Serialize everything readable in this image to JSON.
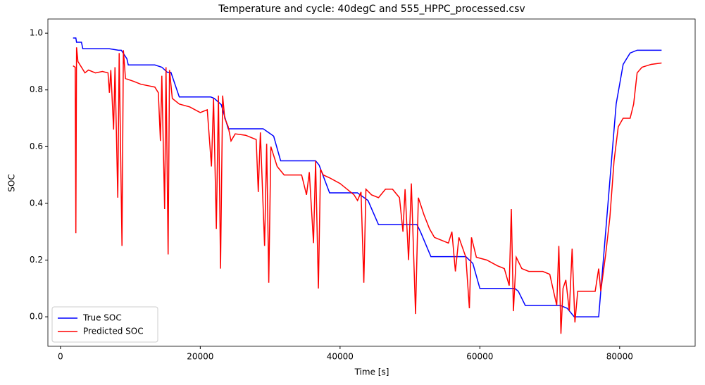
{
  "chart_data": {
    "type": "line",
    "title": "Temperature and cycle: 40degC and 555_HPPC_processed.csv",
    "x_label": "Time [s]",
    "y_label": "SOC",
    "xlim": [
      -1800,
      90800
    ],
    "ylim": [
      -0.104,
      1.05
    ],
    "xticks": [
      0,
      20000,
      40000,
      60000,
      80000
    ],
    "yticks": [
      {
        "value": 0,
        "label": "0.0"
      },
      0.2,
      0.4,
      0.6,
      0.8,
      {
        "value": 1,
        "label": "1.0"
      }
    ],
    "legend": "lower left",
    "series": [
      {
        "name": "True SOC",
        "color": "#0000ff",
        "x": [
          1800,
          2200,
          2300,
          3000,
          3200,
          7000,
          8300,
          8700,
          9500,
          9700,
          13500,
          14500,
          15300,
          15800,
          17000,
          21500,
          22000,
          23000,
          24000,
          29000,
          30500,
          31500,
          36500,
          37000,
          38500,
          42500,
          44000,
          45500,
          51000,
          51500,
          53000,
          58000,
          59000,
          60000,
          65000,
          65500,
          66500,
          71500,
          72500,
          73500,
          77000,
          78500,
          79500,
          80500,
          81500,
          82500,
          86000
        ],
        "values": [
          0.983,
          0.983,
          0.968,
          0.968,
          0.945,
          0.945,
          0.94,
          0.94,
          0.91,
          0.888,
          0.888,
          0.88,
          0.862,
          0.862,
          0.775,
          0.775,
          0.77,
          0.748,
          0.663,
          0.663,
          0.637,
          0.55,
          0.55,
          0.535,
          0.437,
          0.437,
          0.41,
          0.325,
          0.325,
          0.3,
          0.212,
          0.212,
          0.188,
          0.1,
          0.1,
          0.09,
          0.04,
          0.04,
          0.03,
          0.0,
          0.0,
          0.45,
          0.75,
          0.89,
          0.93,
          0.94,
          0.94
        ]
      },
      {
        "name": "Predicted SOC",
        "color": "#ff0000",
        "x": [
          1800,
          2100,
          2200,
          2300,
          2500,
          3500,
          4000,
          5000,
          6000,
          6800,
          7000,
          7200,
          7600,
          7800,
          8200,
          8400,
          8800,
          9000,
          9300,
          10500,
          11500,
          12500,
          13500,
          14000,
          14300,
          14500,
          14900,
          15100,
          15400,
          15600,
          16000,
          17000,
          18500,
          20000,
          21000,
          21600,
          21900,
          22300,
          22600,
          22900,
          23200,
          23500,
          24000,
          24400,
          25000,
          26500,
          28000,
          28300,
          28600,
          29200,
          29500,
          29800,
          30100,
          31000,
          32000,
          33500,
          34500,
          35200,
          35600,
          36200,
          36500,
          36900,
          37200,
          37600,
          38500,
          40000,
          41500,
          42000,
          42500,
          43000,
          43400,
          43700,
          44500,
          45500,
          46500,
          47500,
          48500,
          49000,
          49300,
          49800,
          50200,
          50800,
          51200,
          52000,
          52800,
          53500,
          54500,
          55500,
          56000,
          56500,
          57000,
          58000,
          58500,
          58800,
          59500,
          61000,
          62500,
          63500,
          64200,
          64500,
          64800,
          65200,
          66000,
          67000,
          68000,
          69000,
          70000,
          71000,
          71300,
          71600,
          71900,
          72300,
          72800,
          73200,
          73600,
          74000,
          75000,
          76500,
          77000,
          77300,
          78000,
          78600,
          79200,
          79800,
          80500,
          81500,
          82000,
          82500,
          83200,
          84500,
          86000
        ],
        "values": [
          0.885,
          0.88,
          0.295,
          0.95,
          0.9,
          0.86,
          0.87,
          0.86,
          0.865,
          0.86,
          0.79,
          0.87,
          0.66,
          0.88,
          0.42,
          0.93,
          0.25,
          0.94,
          0.84,
          0.83,
          0.82,
          0.815,
          0.81,
          0.79,
          0.62,
          0.85,
          0.38,
          0.88,
          0.22,
          0.87,
          0.77,
          0.75,
          0.74,
          0.72,
          0.73,
          0.53,
          0.77,
          0.31,
          0.78,
          0.17,
          0.78,
          0.7,
          0.67,
          0.62,
          0.645,
          0.64,
          0.625,
          0.44,
          0.65,
          0.25,
          0.61,
          0.12,
          0.6,
          0.53,
          0.5,
          0.5,
          0.5,
          0.43,
          0.51,
          0.26,
          0.55,
          0.1,
          0.52,
          0.5,
          0.49,
          0.47,
          0.44,
          0.43,
          0.41,
          0.44,
          0.12,
          0.45,
          0.43,
          0.42,
          0.45,
          0.45,
          0.42,
          0.3,
          0.45,
          0.2,
          0.47,
          0.01,
          0.42,
          0.36,
          0.31,
          0.28,
          0.27,
          0.26,
          0.3,
          0.16,
          0.28,
          0.21,
          0.03,
          0.28,
          0.21,
          0.2,
          0.18,
          0.17,
          0.11,
          0.38,
          0.02,
          0.21,
          0.17,
          0.16,
          0.16,
          0.16,
          0.15,
          0.04,
          0.25,
          -0.06,
          0.1,
          0.13,
          0.02,
          0.24,
          -0.02,
          0.09,
          0.09,
          0.09,
          0.17,
          0.09,
          0.22,
          0.35,
          0.55,
          0.67,
          0.7,
          0.7,
          0.75,
          0.86,
          0.88,
          0.89,
          0.895
        ]
      }
    ]
  }
}
